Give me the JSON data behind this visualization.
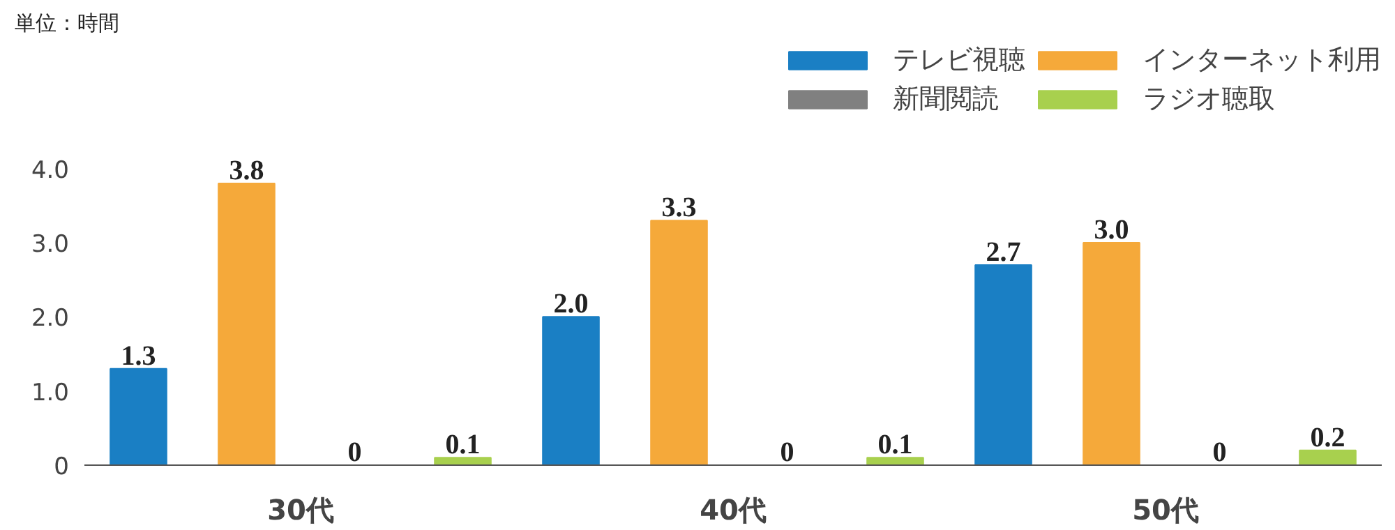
{
  "chart_data": {
    "type": "bar",
    "ylabel": "単位：時間",
    "categories": [
      "30代",
      "40代",
      "50代"
    ],
    "series": [
      {
        "name": "テレビ視聴",
        "color": "#1a7fc4",
        "values": [
          1.3,
          2.0,
          2.7
        ],
        "value_labels": [
          "1.3",
          "2.0",
          "2.7"
        ]
      },
      {
        "name": "インターネット利用",
        "color": "#f5a93a",
        "values": [
          3.8,
          3.3,
          3.0
        ],
        "value_labels": [
          "3.8",
          "3.3",
          "3.0"
        ]
      },
      {
        "name": "新聞閲読",
        "color": "#808080",
        "values": [
          0,
          0,
          0
        ],
        "value_labels": [
          "0",
          "0",
          "0"
        ]
      },
      {
        "name": "ラジオ聴取",
        "color": "#a8d04e",
        "values": [
          0.1,
          0.1,
          0.2
        ],
        "value_labels": [
          "0.1",
          "0.1",
          "0.2"
        ]
      }
    ],
    "ylim": [
      0,
      5.7
    ],
    "yticks": [
      0,
      {
        "value": 1,
        "label": "1.0"
      },
      {
        "value": 2,
        "label": "2.0"
      },
      {
        "value": 3,
        "label": "3.0"
      },
      {
        "value": 4,
        "label": "4.0"
      }
    ],
    "grid": false,
    "legend": "top right"
  }
}
